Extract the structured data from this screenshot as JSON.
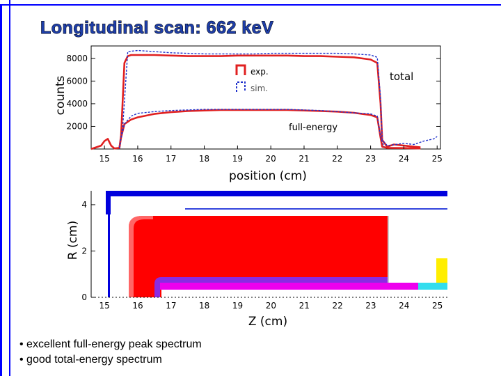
{
  "slide": {
    "title": "Longitudinal scan: 662 keV",
    "bullets": [
      "• excellent full-energy peak spectrum",
      "• good total-energy spectrum"
    ]
  },
  "colors": {
    "frame": "#0000ff",
    "exp": "#e02020",
    "sim": "#2233cc",
    "detector_red": "#ff0000",
    "detector_purple": "#8a2be2",
    "detector_magenta": "#ee00ee",
    "detector_yellow": "#ffee00",
    "detector_cyan": "#33ddee",
    "detector_blue": "#0000dd"
  },
  "chart_data": [
    {
      "type": "line",
      "xlabel": "position  (cm)",
      "ylabel": "counts",
      "xlim": [
        14.6,
        25.1
      ],
      "ylim": [
        0,
        9100
      ],
      "xticks": [
        15,
        16,
        17,
        18,
        19,
        20,
        21,
        22,
        23,
        24,
        25
      ],
      "yticks": [
        2000,
        4000,
        6000,
        8000
      ],
      "legend": [
        {
          "name": "exp.",
          "style": "solid"
        },
        {
          "name": "sim.",
          "style": "dashed"
        }
      ],
      "annotations": [
        "total",
        "full-energy"
      ],
      "series": [
        {
          "name": "exp.",
          "curve": "total",
          "x": [
            14.6,
            14.9,
            15.0,
            15.1,
            15.2,
            15.3,
            15.45,
            15.5,
            15.6,
            15.7,
            15.8,
            16,
            16.5,
            17,
            17.5,
            18,
            18.5,
            19,
            19.5,
            20,
            20.5,
            21,
            21.5,
            22,
            22.5,
            23,
            23.2,
            23.3,
            23.35,
            23.5,
            23.7,
            24,
            24.3,
            24.5
          ],
          "y": [
            0,
            300,
            700,
            900,
            300,
            50,
            100,
            1200,
            7600,
            8200,
            8300,
            8300,
            8300,
            8250,
            8200,
            8200,
            8200,
            8250,
            8250,
            8250,
            8250,
            8200,
            8200,
            8150,
            8100,
            7900,
            7600,
            4000,
            800,
            200,
            400,
            300,
            200,
            150
          ]
        },
        {
          "name": "exp.",
          "curve": "full-energy",
          "x": [
            15.45,
            15.5,
            15.6,
            15.8,
            16,
            16.5,
            17,
            17.5,
            18,
            18.5,
            19,
            19.5,
            20,
            20.5,
            21,
            21.5,
            22,
            22.5,
            23,
            23.2,
            23.3,
            23.35,
            23.5,
            24,
            24.5
          ],
          "y": [
            100,
            1000,
            2200,
            2600,
            2800,
            3100,
            3250,
            3350,
            3400,
            3450,
            3450,
            3450,
            3450,
            3450,
            3400,
            3350,
            3300,
            3200,
            3000,
            2800,
            1000,
            200,
            100,
            80,
            50
          ]
        },
        {
          "name": "sim.",
          "curve": "total",
          "x": [
            15.45,
            15.55,
            15.7,
            16,
            16.5,
            17,
            17.5,
            18,
            18.5,
            19,
            19.5,
            20,
            20.5,
            21,
            21.5,
            22,
            22.5,
            23,
            23.2,
            23.3,
            23.35,
            23.5,
            24,
            24.3,
            24.6,
            24.9,
            25.0
          ],
          "y": [
            100,
            2000,
            8600,
            8700,
            8600,
            8500,
            8450,
            8400,
            8400,
            8400,
            8400,
            8450,
            8450,
            8450,
            8450,
            8450,
            8400,
            8300,
            8100,
            4500,
            800,
            300,
            500,
            400,
            700,
            900,
            1100
          ]
        },
        {
          "name": "sim.",
          "curve": "full-energy",
          "x": [
            15.45,
            15.5,
            15.6,
            15.8,
            16,
            16.5,
            17,
            17.5,
            18,
            18.5,
            19,
            19.5,
            20,
            20.5,
            21,
            21.5,
            22,
            22.5,
            23,
            23.2,
            23.3,
            23.4
          ],
          "y": [
            100,
            1000,
            2200,
            2900,
            3150,
            3300,
            3400,
            3450,
            3500,
            3500,
            3500,
            3500,
            3500,
            3500,
            3450,
            3400,
            3300,
            3200,
            3100,
            2900,
            1100,
            200
          ]
        }
      ]
    },
    {
      "type": "diagram",
      "xlabel": "Z  (cm)",
      "ylabel": "R  (cm)",
      "xlim": [
        14.6,
        25.3
      ],
      "ylim": [
        0,
        4.6
      ],
      "xticks": [
        15,
        16,
        17,
        18,
        19,
        20,
        21,
        22,
        23,
        24,
        25
      ],
      "yticks": [
        0,
        2,
        4
      ]
    }
  ]
}
